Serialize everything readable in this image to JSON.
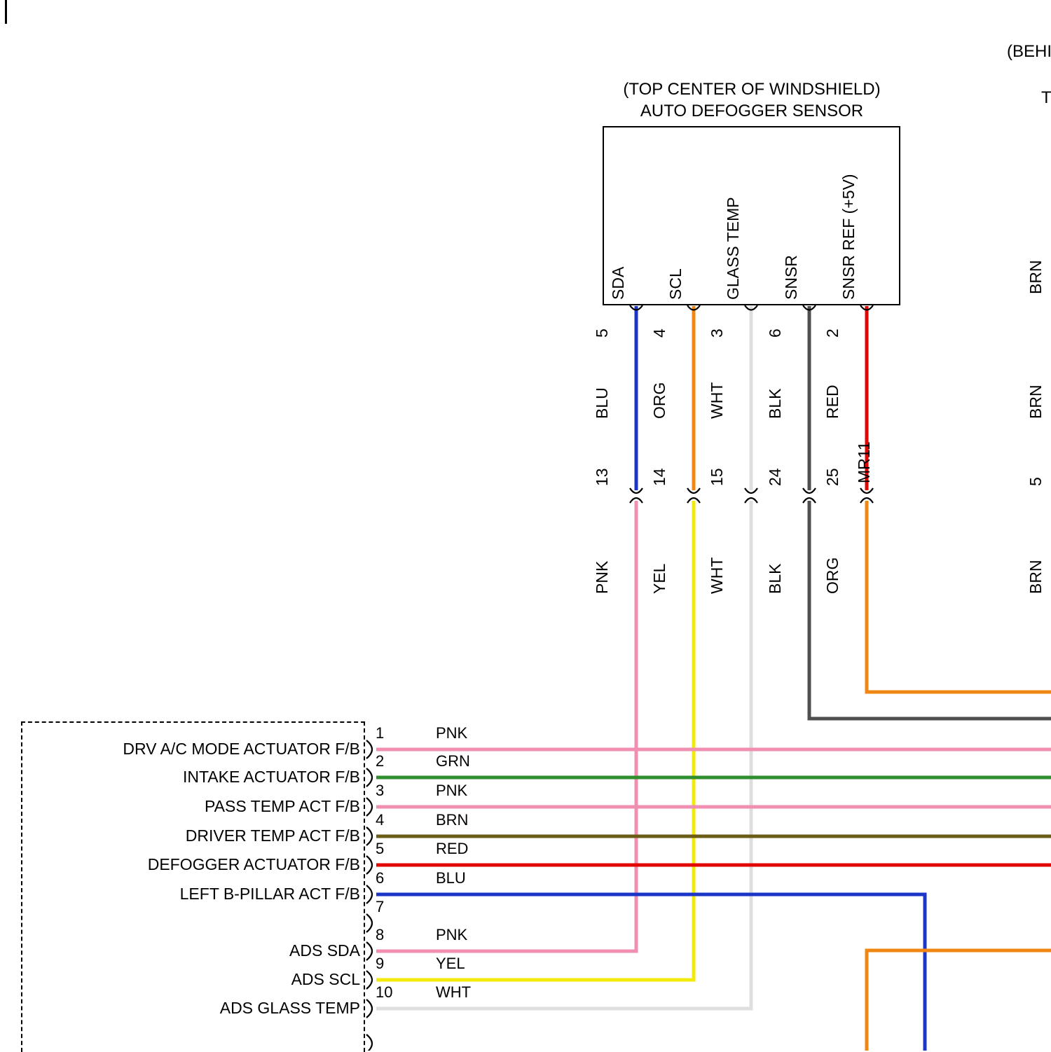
{
  "colors": {
    "PNK": "#f08fb1",
    "GRN": "#2f8f2f",
    "BRN": "#6b5d16",
    "RED": "#e10600",
    "BLU": "#1a35c8",
    "YEL": "#f2ea0a",
    "WHT": "#dedede",
    "BLK": "#4f4f4f",
    "ORG": "#ef8712"
  },
  "top_connector": {
    "location_label": "(TOP CENTER OF WINDSHIELD)",
    "name_label": "AUTO DEFOGGER SENSOR",
    "connector_label": "MR11",
    "pins": [
      {
        "signal": "SDA",
        "pin": "5",
        "upper_wire_color": "BLU",
        "junction_pin": "13",
        "lower_wire_color": "PNK"
      },
      {
        "signal": "SCL",
        "pin": "4",
        "upper_wire_color": "ORG",
        "junction_pin": "14",
        "lower_wire_color": "YEL"
      },
      {
        "signal": "GLASS TEMP",
        "pin": "3",
        "upper_wire_color": "WHT",
        "junction_pin": "15",
        "lower_wire_color": "WHT"
      },
      {
        "signal": "SNSR",
        "pin": "6",
        "upper_wire_color": "BLK",
        "junction_pin": "24",
        "lower_wire_color": "BLK"
      },
      {
        "signal": "SNSR REF (+5V)",
        "pin": "2",
        "upper_wire_color": "RED",
        "junction_pin": "25",
        "lower_wire_color": "ORG"
      }
    ]
  },
  "left_connector": {
    "rows": [
      {
        "pin": "1",
        "label": "DRV A/C MODE ACTUATOR F/B",
        "wire_color": "PNK"
      },
      {
        "pin": "2",
        "label": "INTAKE ACTUATOR F/B",
        "wire_color": "GRN"
      },
      {
        "pin": "3",
        "label": "PASS TEMP ACT F/B",
        "wire_color": "PNK"
      },
      {
        "pin": "4",
        "label": "DRIVER TEMP ACT F/B",
        "wire_color": "BRN"
      },
      {
        "pin": "5",
        "label": "DEFOGGER ACTUATOR F/B",
        "wire_color": "RED"
      },
      {
        "pin": "6",
        "label": "LEFT B-PILLAR ACT F/B",
        "wire_color": "BLU"
      },
      {
        "pin": "7",
        "label": "",
        "wire_color": ""
      },
      {
        "pin": "8",
        "label": "ADS SDA",
        "wire_color": "PNK"
      },
      {
        "pin": "9",
        "label": "ADS SCL",
        "wire_color": "YEL"
      },
      {
        "pin": "10",
        "label": "ADS GLASS TEMP",
        "wire_color": "WHT"
      },
      {
        "pin": "",
        "label": "",
        "wire_color": ""
      }
    ]
  },
  "edge_fragments": {
    "top_right_text": "(BEHI",
    "right_text": "T",
    "rotated": [
      "BRN",
      "BRN",
      "5",
      "BRN"
    ]
  }
}
